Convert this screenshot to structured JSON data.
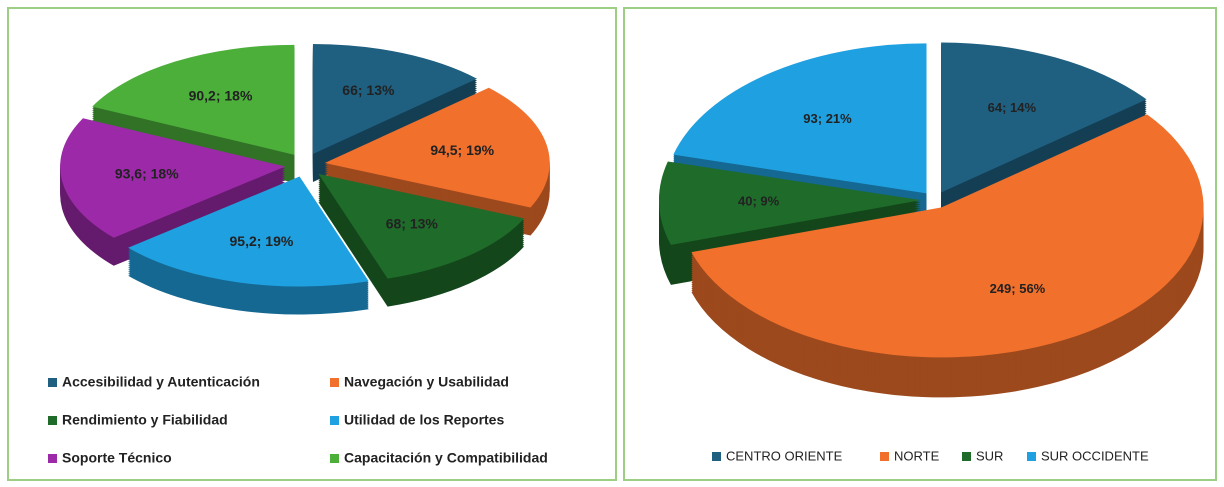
{
  "chart_data": [
    {
      "type": "pie",
      "categories": [
        "Accesibilidad y Autenticación",
        "Navegación y Usabilidad",
        "Rendimiento y Fiabilidad",
        "Utilidad de los Reportes",
        "Soporte Técnico",
        "Capacitación y Compatibilidad"
      ],
      "values": [
        66,
        94.5,
        68,
        95.2,
        93.6,
        90.2
      ],
      "value_labels": [
        "66; 13%",
        "94,5; 19%",
        "68; 13%",
        "95,2; 19%",
        "93,6; 18%",
        "90,2; 18%"
      ],
      "colors": [
        "#1f5f80",
        "#f0702c",
        "#1e6b2a",
        "#1fa0e0",
        "#9c2aa8",
        "#4caf3a"
      ],
      "legend": "bottom"
    },
    {
      "type": "pie",
      "categories": [
        "CENTRO ORIENTE",
        "NORTE",
        "SUR",
        "SUR OCCIDENTE"
      ],
      "values": [
        64,
        249,
        40,
        93
      ],
      "value_labels": [
        "64; 14%",
        "249; 56%",
        "40; 9%",
        "93; 21%"
      ],
      "colors": [
        "#1f5f80",
        "#f0702c",
        "#1e6b2a",
        "#1fa0e0"
      ],
      "legend": "bottom"
    }
  ]
}
